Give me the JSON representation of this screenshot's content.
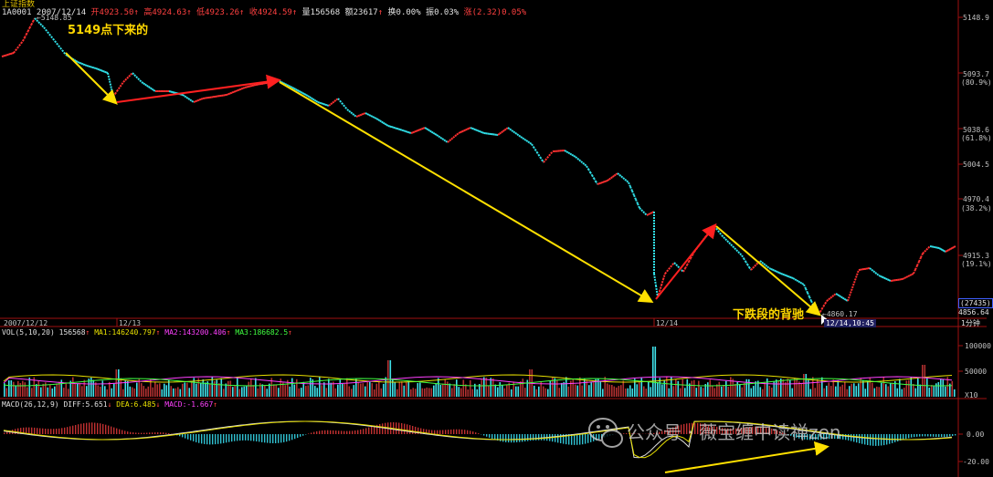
{
  "app": {
    "title": "上证指数"
  },
  "header": {
    "code_date": "1A0001 2007/12/14",
    "open": "开4923.50",
    "high": "高4924.63",
    "low": "低4923.26",
    "close": "收4924.59",
    "volume": "量156568",
    "amount": "额23617",
    "turnover": "换0.00%",
    "amplitude": "振0.03%",
    "change": "涨(2.32)0.05%"
  },
  "price_axis": {
    "labels": [
      "5148.9",
      "5093.7",
      "(80.9%)",
      "5038.6",
      "(61.8%)",
      "5004.5",
      "4970.4",
      "(38.2%)",
      "4915.3",
      "(19.1%)",
      "(27435)",
      "4856.64"
    ]
  },
  "markers": {
    "high_value": "5148.85",
    "low_value": "4860.17",
    "cursor_time": "12/14,10:45"
  },
  "time_axis": {
    "labels": [
      "2007/12/12",
      "12/13",
      "12/14"
    ],
    "period": "1分钟"
  },
  "volume_panel": {
    "title": "VOL(5,10,20)",
    "value": "156568",
    "ma1": "MA1:146240.797",
    "ma2": "MA2:143200.406",
    "ma3": "MA3:186682.5",
    "axis": [
      "100000",
      "50000",
      "X10"
    ]
  },
  "macd_panel": {
    "title": "MACD(26,12,9)",
    "diff": "DIFF:5.651",
    "dea": "DEA:6.485",
    "macd": "MACD:-1.667",
    "axis": [
      "0.00",
      "-20.00"
    ]
  },
  "annotations": {
    "callout_top": "5149点下来的",
    "callout_bottom": "下跌段的背驰"
  },
  "watermark": "公众号 · 薇宝缠中读禅zen",
  "colors": {
    "up": "#ff3030",
    "down": "#30e0e8",
    "arrow": "#ffe000",
    "arrow_up": "#ff2020",
    "grid": "#8b0000"
  }
}
